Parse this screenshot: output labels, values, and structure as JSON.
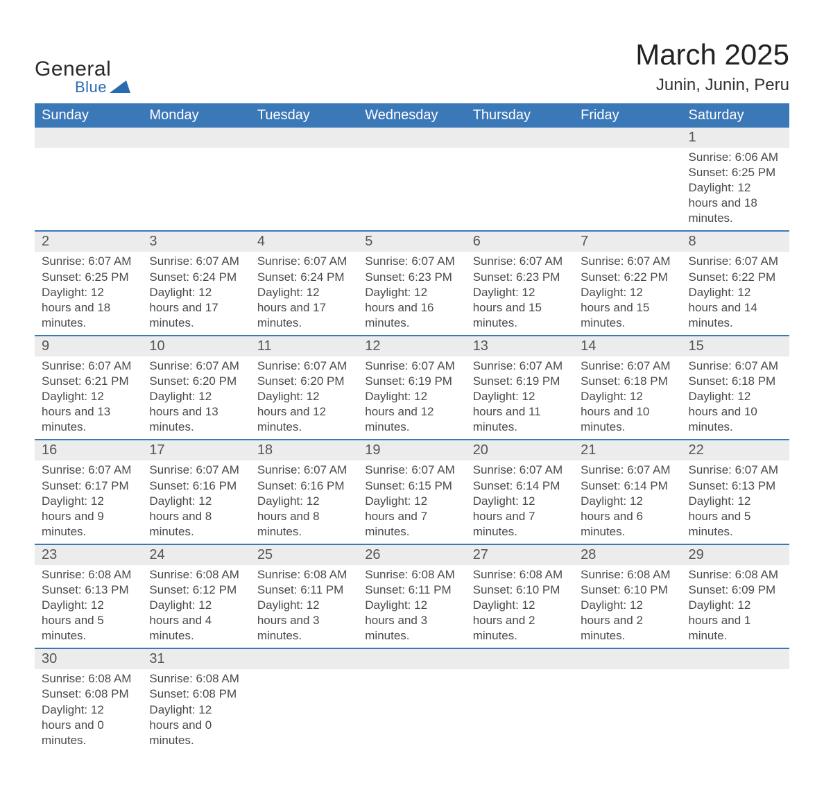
{
  "brand": {
    "part1": "General",
    "part2": "Blue"
  },
  "title": "March 2025",
  "subtitle": "Junin, Junin, Peru",
  "colors": {
    "header_bg": "#3b78b8",
    "header_text": "#ffffff",
    "daynum_bg": "#ececec",
    "row_border": "#3b78b8",
    "text": "#333333",
    "text_muted": "#4a4a4a"
  },
  "weekdays": [
    "Sunday",
    "Monday",
    "Tuesday",
    "Wednesday",
    "Thursday",
    "Friday",
    "Saturday"
  ],
  "weeks": [
    [
      null,
      null,
      null,
      null,
      null,
      null,
      {
        "n": "1",
        "sunrise": "Sunrise: 6:06 AM",
        "sunset": "Sunset: 6:25 PM",
        "daylight": "Daylight: 12 hours and 18 minutes."
      }
    ],
    [
      {
        "n": "2",
        "sunrise": "Sunrise: 6:07 AM",
        "sunset": "Sunset: 6:25 PM",
        "daylight": "Daylight: 12 hours and 18 minutes."
      },
      {
        "n": "3",
        "sunrise": "Sunrise: 6:07 AM",
        "sunset": "Sunset: 6:24 PM",
        "daylight": "Daylight: 12 hours and 17 minutes."
      },
      {
        "n": "4",
        "sunrise": "Sunrise: 6:07 AM",
        "sunset": "Sunset: 6:24 PM",
        "daylight": "Daylight: 12 hours and 17 minutes."
      },
      {
        "n": "5",
        "sunrise": "Sunrise: 6:07 AM",
        "sunset": "Sunset: 6:23 PM",
        "daylight": "Daylight: 12 hours and 16 minutes."
      },
      {
        "n": "6",
        "sunrise": "Sunrise: 6:07 AM",
        "sunset": "Sunset: 6:23 PM",
        "daylight": "Daylight: 12 hours and 15 minutes."
      },
      {
        "n": "7",
        "sunrise": "Sunrise: 6:07 AM",
        "sunset": "Sunset: 6:22 PM",
        "daylight": "Daylight: 12 hours and 15 minutes."
      },
      {
        "n": "8",
        "sunrise": "Sunrise: 6:07 AM",
        "sunset": "Sunset: 6:22 PM",
        "daylight": "Daylight: 12 hours and 14 minutes."
      }
    ],
    [
      {
        "n": "9",
        "sunrise": "Sunrise: 6:07 AM",
        "sunset": "Sunset: 6:21 PM",
        "daylight": "Daylight: 12 hours and 13 minutes."
      },
      {
        "n": "10",
        "sunrise": "Sunrise: 6:07 AM",
        "sunset": "Sunset: 6:20 PM",
        "daylight": "Daylight: 12 hours and 13 minutes."
      },
      {
        "n": "11",
        "sunrise": "Sunrise: 6:07 AM",
        "sunset": "Sunset: 6:20 PM",
        "daylight": "Daylight: 12 hours and 12 minutes."
      },
      {
        "n": "12",
        "sunrise": "Sunrise: 6:07 AM",
        "sunset": "Sunset: 6:19 PM",
        "daylight": "Daylight: 12 hours and 12 minutes."
      },
      {
        "n": "13",
        "sunrise": "Sunrise: 6:07 AM",
        "sunset": "Sunset: 6:19 PM",
        "daylight": "Daylight: 12 hours and 11 minutes."
      },
      {
        "n": "14",
        "sunrise": "Sunrise: 6:07 AM",
        "sunset": "Sunset: 6:18 PM",
        "daylight": "Daylight: 12 hours and 10 minutes."
      },
      {
        "n": "15",
        "sunrise": "Sunrise: 6:07 AM",
        "sunset": "Sunset: 6:18 PM",
        "daylight": "Daylight: 12 hours and 10 minutes."
      }
    ],
    [
      {
        "n": "16",
        "sunrise": "Sunrise: 6:07 AM",
        "sunset": "Sunset: 6:17 PM",
        "daylight": "Daylight: 12 hours and 9 minutes."
      },
      {
        "n": "17",
        "sunrise": "Sunrise: 6:07 AM",
        "sunset": "Sunset: 6:16 PM",
        "daylight": "Daylight: 12 hours and 8 minutes."
      },
      {
        "n": "18",
        "sunrise": "Sunrise: 6:07 AM",
        "sunset": "Sunset: 6:16 PM",
        "daylight": "Daylight: 12 hours and 8 minutes."
      },
      {
        "n": "19",
        "sunrise": "Sunrise: 6:07 AM",
        "sunset": "Sunset: 6:15 PM",
        "daylight": "Daylight: 12 hours and 7 minutes."
      },
      {
        "n": "20",
        "sunrise": "Sunrise: 6:07 AM",
        "sunset": "Sunset: 6:14 PM",
        "daylight": "Daylight: 12 hours and 7 minutes."
      },
      {
        "n": "21",
        "sunrise": "Sunrise: 6:07 AM",
        "sunset": "Sunset: 6:14 PM",
        "daylight": "Daylight: 12 hours and 6 minutes."
      },
      {
        "n": "22",
        "sunrise": "Sunrise: 6:07 AM",
        "sunset": "Sunset: 6:13 PM",
        "daylight": "Daylight: 12 hours and 5 minutes."
      }
    ],
    [
      {
        "n": "23",
        "sunrise": "Sunrise: 6:08 AM",
        "sunset": "Sunset: 6:13 PM",
        "daylight": "Daylight: 12 hours and 5 minutes."
      },
      {
        "n": "24",
        "sunrise": "Sunrise: 6:08 AM",
        "sunset": "Sunset: 6:12 PM",
        "daylight": "Daylight: 12 hours and 4 minutes."
      },
      {
        "n": "25",
        "sunrise": "Sunrise: 6:08 AM",
        "sunset": "Sunset: 6:11 PM",
        "daylight": "Daylight: 12 hours and 3 minutes."
      },
      {
        "n": "26",
        "sunrise": "Sunrise: 6:08 AM",
        "sunset": "Sunset: 6:11 PM",
        "daylight": "Daylight: 12 hours and 3 minutes."
      },
      {
        "n": "27",
        "sunrise": "Sunrise: 6:08 AM",
        "sunset": "Sunset: 6:10 PM",
        "daylight": "Daylight: 12 hours and 2 minutes."
      },
      {
        "n": "28",
        "sunrise": "Sunrise: 6:08 AM",
        "sunset": "Sunset: 6:10 PM",
        "daylight": "Daylight: 12 hours and 2 minutes."
      },
      {
        "n": "29",
        "sunrise": "Sunrise: 6:08 AM",
        "sunset": "Sunset: 6:09 PM",
        "daylight": "Daylight: 12 hours and 1 minute."
      }
    ],
    [
      {
        "n": "30",
        "sunrise": "Sunrise: 6:08 AM",
        "sunset": "Sunset: 6:08 PM",
        "daylight": "Daylight: 12 hours and 0 minutes."
      },
      {
        "n": "31",
        "sunrise": "Sunrise: 6:08 AM",
        "sunset": "Sunset: 6:08 PM",
        "daylight": "Daylight: 12 hours and 0 minutes."
      },
      null,
      null,
      null,
      null,
      null
    ]
  ]
}
